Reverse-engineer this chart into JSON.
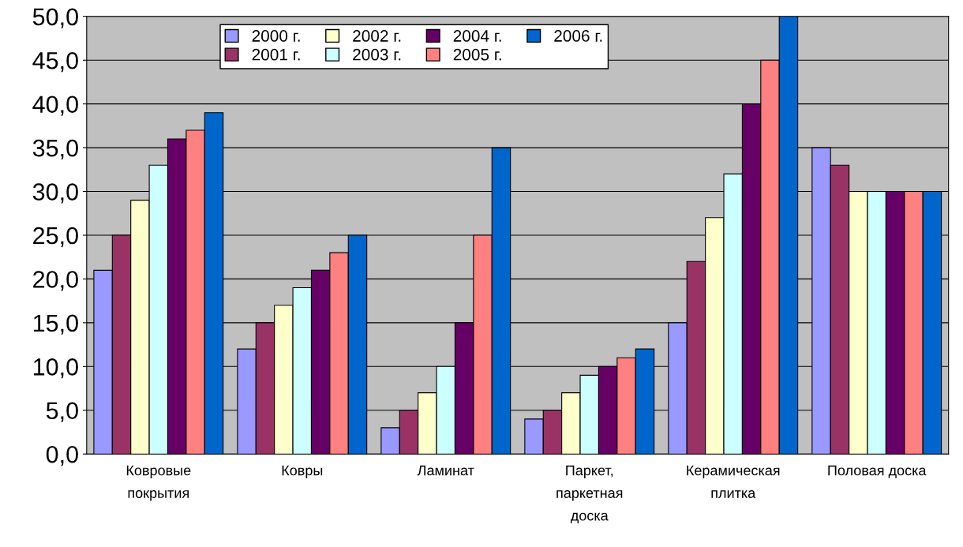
{
  "chart_data": {
    "type": "bar",
    "categories": [
      "Ковровые\nпокрытия",
      "Ковры",
      "Ламинат",
      "Паркет,\nпаркетная\nдоска",
      "Керамическая\nплитка",
      "Половая доска"
    ],
    "series": [
      {
        "name": "2000 г.",
        "color": "#9999ff",
        "values": [
          21,
          12,
          3,
          4,
          15,
          35
        ]
      },
      {
        "name": "2001 г.",
        "color": "#993366",
        "values": [
          25,
          15,
          5,
          5,
          22,
          33
        ]
      },
      {
        "name": "2002 г.",
        "color": "#ffffcc",
        "values": [
          29,
          17,
          7,
          7,
          27,
          30
        ]
      },
      {
        "name": "2003 г.",
        "color": "#ccffff",
        "values": [
          33,
          19,
          10,
          9,
          32,
          30
        ]
      },
      {
        "name": "2004 г.",
        "color": "#660066",
        "values": [
          36,
          21,
          15,
          10,
          40,
          30
        ]
      },
      {
        "name": "2005 г.",
        "color": "#ff8080",
        "values": [
          37,
          23,
          25,
          11,
          45,
          30
        ]
      },
      {
        "name": "2006 г.",
        "color": "#0066cc",
        "values": [
          39,
          25,
          35,
          12,
          50,
          30
        ]
      }
    ],
    "ylim": [
      0,
      50
    ],
    "yticks": [
      {
        "value": 0,
        "label": "0,0"
      },
      {
        "value": 5,
        "label": "5,0"
      },
      {
        "value": 10,
        "label": "10,0"
      },
      {
        "value": 15,
        "label": "15,0"
      },
      {
        "value": 20,
        "label": "20,0"
      },
      {
        "value": 25,
        "label": "25,0"
      },
      {
        "value": 30,
        "label": "30,0"
      },
      {
        "value": 35,
        "label": "35,0"
      },
      {
        "value": 40,
        "label": "40,0"
      },
      {
        "value": 45,
        "label": "45,0"
      },
      {
        "value": 50,
        "label": "50,0"
      }
    ],
    "grid": "y",
    "legend": "top"
  }
}
